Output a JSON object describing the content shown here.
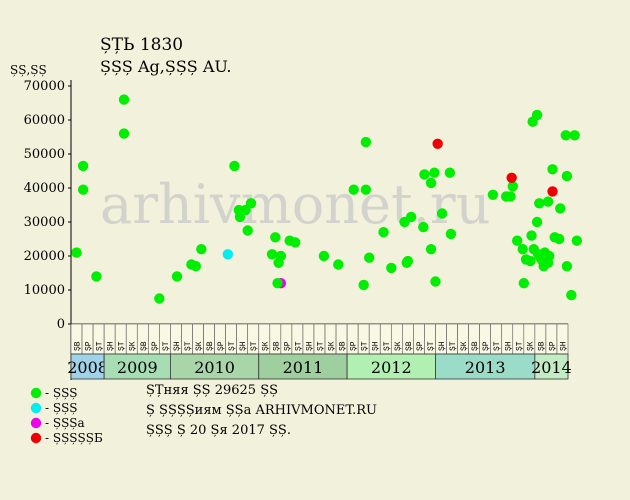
{
  "chart_data": {
    "type": "scatter",
    "title": "ȘȚЬ 1830",
    "subtitle": "ȘȘȘ Ag,ȘȘȘ AU.",
    "ylabel": "ȘȘ,ȘȘ",
    "ylim": [
      0,
      70000
    ],
    "yticks": [
      0,
      10000,
      20000,
      30000,
      40000,
      50000,
      60000,
      70000
    ],
    "grid": false,
    "watermark": "arhivmonet.ru",
    "months": [
      "ȘВ",
      "ȘР",
      "ȘТ",
      "ȘН",
      "ȘТ",
      "ȘК",
      "ȘВ",
      "ȘР",
      "ȘТ",
      "ȘН",
      "ȘТ",
      "ȘК",
      "ȘВ",
      "ȘР",
      "ȘТ",
      "ȘН",
      "ȘТ",
      "ȘК",
      "ȘВ",
      "ȘР",
      "ȘТ",
      "ȘН",
      "ȘТ",
      "ȘК",
      "ȘВ",
      "ȘР",
      "ȘТ",
      "ȘН",
      "ȘТ",
      "ȘК",
      "ȘВ",
      "ȘР",
      "ȘТ",
      "ȘН",
      "ȘТ",
      "ȘК",
      "ȘВ",
      "ȘР",
      "ȘТ",
      "ȘН",
      "ȘТ",
      "ȘК",
      "ȘВ",
      "ȘР",
      "ȘН"
    ],
    "years": [
      {
        "label": "2008",
        "span": 3,
        "color": "#9fd3e8"
      },
      {
        "label": "2009",
        "span": 6,
        "color": "#a6ddb5"
      },
      {
        "label": "2010",
        "span": 8,
        "color": "#a8d6a8"
      },
      {
        "label": "2011",
        "span": 8,
        "color": "#9fcf9f"
      },
      {
        "label": "2012",
        "span": 8,
        "color": "#b2f0b2"
      },
      {
        "label": "2013",
        "span": 9,
        "color": "#9adcc8"
      },
      {
        "label": "2014",
        "span": 3,
        "color": "#c4ecc4"
      }
    ],
    "series": [
      {
        "name": "ȘȘȘ",
        "color": "#00ee00",
        "points": [
          [
            0.5,
            21000
          ],
          [
            1.1,
            46500
          ],
          [
            1.1,
            39500
          ],
          [
            2.3,
            14000
          ],
          [
            4.8,
            66000
          ],
          [
            4.8,
            56000
          ],
          [
            8.0,
            7500
          ],
          [
            9.6,
            14000
          ],
          [
            10.9,
            17500
          ],
          [
            11.3,
            17000
          ],
          [
            11.8,
            22000
          ],
          [
            14.8,
            46500
          ],
          [
            15.2,
            33500
          ],
          [
            15.3,
            31500
          ],
          [
            15.8,
            33500
          ],
          [
            16.0,
            27500
          ],
          [
            16.3,
            35500
          ],
          [
            18.2,
            20500
          ],
          [
            18.5,
            25500
          ],
          [
            18.8,
            18000
          ],
          [
            19.0,
            20000
          ],
          [
            19.8,
            24500
          ],
          [
            20.3,
            24000
          ],
          [
            22.9,
            20000
          ],
          [
            24.2,
            17500
          ],
          [
            25.6,
            39500
          ],
          [
            26.5,
            11500
          ],
          [
            26.7,
            53500
          ],
          [
            26.7,
            39500
          ],
          [
            27.0,
            19500
          ],
          [
            28.3,
            27000
          ],
          [
            29.0,
            16500
          ],
          [
            30.2,
            30000
          ],
          [
            30.4,
            18000
          ],
          [
            30.5,
            18500
          ],
          [
            30.8,
            31500
          ],
          [
            31.9,
            28500
          ],
          [
            32.0,
            44000
          ],
          [
            32.6,
            41500
          ],
          [
            32.6,
            22000
          ],
          [
            32.9,
            44500
          ],
          [
            33.0,
            12500
          ],
          [
            33.6,
            32500
          ],
          [
            34.3,
            44500
          ],
          [
            34.4,
            26500
          ],
          [
            38.2,
            38000
          ],
          [
            39.4,
            37500
          ],
          [
            39.8,
            37500
          ],
          [
            40.0,
            40500
          ],
          [
            40.4,
            24500
          ],
          [
            41.0,
            12000
          ],
          [
            40.9,
            22000
          ],
          [
            41.2,
            19000
          ],
          [
            41.6,
            18500
          ],
          [
            41.7,
            26000
          ],
          [
            41.8,
            59500
          ],
          [
            41.9,
            22000
          ],
          [
            42.2,
            61500
          ],
          [
            42.2,
            30000
          ],
          [
            42.3,
            20500
          ],
          [
            42.4,
            35500
          ],
          [
            42.5,
            19500
          ],
          [
            42.7,
            18500
          ],
          [
            42.8,
            17000
          ],
          [
            42.9,
            21000
          ],
          [
            43.0,
            18500
          ],
          [
            43.2,
            36000
          ],
          [
            43.2,
            18000
          ],
          [
            43.3,
            20000
          ],
          [
            43.6,
            45500
          ],
          [
            43.8,
            25500
          ],
          [
            44.3,
            34000
          ],
          [
            44.2,
            25000
          ],
          [
            44.8,
            55500
          ],
          [
            44.9,
            43500
          ],
          [
            44.9,
            17000
          ],
          [
            45.3,
            8500
          ],
          [
            45.6,
            55500
          ],
          [
            45.8,
            24500
          ]
        ]
      },
      {
        "name": "ȘȘȘ",
        "color": "#00eeee",
        "points": [
          [
            14.2,
            20500
          ]
        ]
      },
      {
        "name": "ȘȘȘa",
        "color": "#ee00ee",
        "points": [
          [
            19.0,
            12000
          ]
        ]
      },
      {
        "name": "ȘȘȘȘȘБ",
        "color": "#ee0000",
        "points": [
          [
            33.2,
            53000
          ],
          [
            39.9,
            43000
          ],
          [
            43.6,
            39000
          ]
        ]
      }
    ],
    "extra_points": [
      [
        18.7,
        12000
      ]
    ],
    "info_lines": [
      "ȘȚняя ȘȘ 29625 ȘȘ",
      "Ș ȘȘȘȘиям ȘȘа ARHIVMONET.RU",
      "ȘȘȘ Ș 20 Șя 2017 ȘȘ."
    ]
  }
}
